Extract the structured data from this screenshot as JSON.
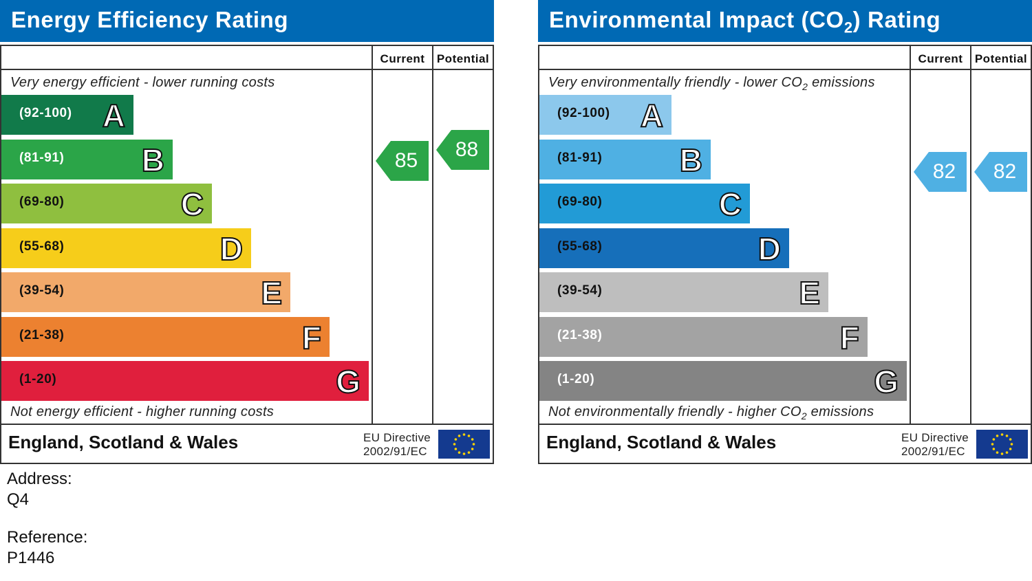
{
  "energy": {
    "title": "Energy Efficiency Rating",
    "col_current": "Current",
    "col_potential": "Potential",
    "top_caption": "Very energy efficient - lower running costs",
    "bottom_caption": "Not energy efficient - higher running costs",
    "bands": [
      {
        "range": "(92-100)",
        "letter": "A",
        "color": "#117a4a",
        "text_color": "#ffffff"
      },
      {
        "range": "(81-91)",
        "letter": "B",
        "color": "#2ba548",
        "text_color": "#ffffff"
      },
      {
        "range": "(69-80)",
        "letter": "C",
        "color": "#8fbf3f",
        "text_color": "#111111"
      },
      {
        "range": "(55-68)",
        "letter": "D",
        "color": "#f6cd1a",
        "text_color": "#111111"
      },
      {
        "range": "(39-54)",
        "letter": "E",
        "color": "#f2a96a",
        "text_color": "#111111"
      },
      {
        "range": "(21-38)",
        "letter": "F",
        "color": "#ec8130",
        "text_color": "#111111"
      },
      {
        "range": "(1-20)",
        "letter": "G",
        "color": "#e01f3d",
        "text_color": "#111111"
      }
    ],
    "current": {
      "value": "85",
      "color": "#2ba548"
    },
    "potential": {
      "value": "88",
      "color": "#2ba548"
    },
    "region": "England, Scotland & Wales",
    "directive_line1": "EU Directive",
    "directive_line2": "2002/91/EC"
  },
  "environmental": {
    "title_pre": "Environmental Impact (CO",
    "title_sub": "2",
    "title_post": ") Rating",
    "col_current": "Current",
    "col_potential": "Potential",
    "top_caption_pre": "Very environmentally friendly - lower CO",
    "top_caption_sub": "2",
    "top_caption_post": " emissions",
    "bottom_caption_pre": "Not environmentally friendly - higher CO",
    "bottom_caption_sub": "2",
    "bottom_caption_post": " emissions",
    "bands": [
      {
        "range": "(92-100)",
        "letter": "A",
        "color": "#8cc8ec",
        "text_color": "#111111"
      },
      {
        "range": "(81-91)",
        "letter": "B",
        "color": "#4fb0e3",
        "text_color": "#111111"
      },
      {
        "range": "(69-80)",
        "letter": "C",
        "color": "#229bd6",
        "text_color": "#111111"
      },
      {
        "range": "(55-68)",
        "letter": "D",
        "color": "#166fba",
        "text_color": "#111111"
      },
      {
        "range": "(39-54)",
        "letter": "E",
        "color": "#bebebe",
        "text_color": "#111111"
      },
      {
        "range": "(21-38)",
        "letter": "F",
        "color": "#a3a3a3",
        "text_color": "#ffffff"
      },
      {
        "range": "(1-20)",
        "letter": "G",
        "color": "#848484",
        "text_color": "#ffffff"
      }
    ],
    "current": {
      "value": "82",
      "color": "#4fb0e3"
    },
    "potential": {
      "value": "82",
      "color": "#4fb0e3"
    },
    "region": "England, Scotland & Wales",
    "directive_line1": "EU Directive",
    "directive_line2": "2002/91/EC"
  },
  "address_label": "Address:",
  "address_value": "Q4",
  "reference_label": "Reference:",
  "reference_value": "P1446",
  "chart_data": [
    {
      "type": "bar",
      "title": "Energy Efficiency Rating",
      "categories": [
        "A",
        "B",
        "C",
        "D",
        "E",
        "F",
        "G"
      ],
      "ranges": [
        "92-100",
        "81-91",
        "69-80",
        "55-68",
        "39-54",
        "21-38",
        "1-20"
      ],
      "current": 85,
      "current_band": "B",
      "potential": 88,
      "potential_band": "B"
    },
    {
      "type": "bar",
      "title": "Environmental Impact (CO2) Rating",
      "categories": [
        "A",
        "B",
        "C",
        "D",
        "E",
        "F",
        "G"
      ],
      "ranges": [
        "92-100",
        "81-91",
        "69-80",
        "55-68",
        "39-54",
        "21-38",
        "1-20"
      ],
      "current": 82,
      "current_band": "B",
      "potential": 82,
      "potential_band": "B"
    }
  ]
}
